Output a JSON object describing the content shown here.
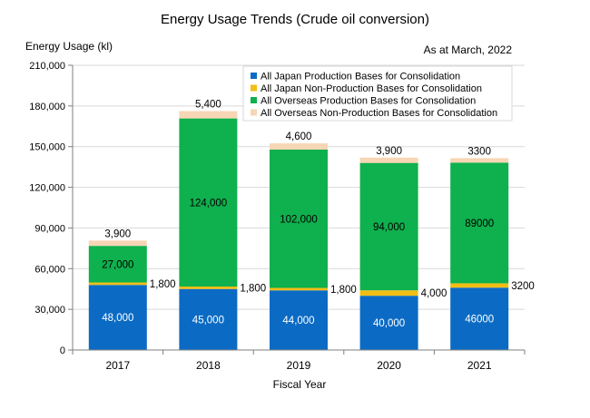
{
  "chart_data": {
    "type": "bar",
    "stacked": true,
    "title": "Energy Usage Trends (Crude oil conversion)",
    "ylabel": "Energy Usage (kl)",
    "xlabel": "Fiscal Year",
    "note": "As at March, 2022",
    "ylim": [
      0,
      210000
    ],
    "ytick_labels": [
      "0",
      "30,000",
      "60,000",
      "90,000",
      "120,000",
      "150,000",
      "180,000",
      "210,000"
    ],
    "ytick_values": [
      0,
      30000,
      60000,
      90000,
      120000,
      150000,
      180000,
      210000
    ],
    "grid": true,
    "legend_position": "top-right",
    "categories": [
      "2017",
      "2018",
      "2019",
      "2020",
      "2021"
    ],
    "series": [
      {
        "name": "All Japan Production Bases for Consolidation",
        "color": "#0B6BC4",
        "values": [
          48000,
          45000,
          44000,
          40000,
          46000
        ],
        "labels": [
          "48,000",
          "45,000",
          "44,000",
          "40,000",
          "46000"
        ]
      },
      {
        "name": "All Japan Non-Production Bases for Consolidation",
        "color": "#F2BE14",
        "values": [
          1800,
          1800,
          1800,
          4000,
          3200
        ],
        "labels": [
          "1,800",
          "1,800",
          "1,800",
          "4,000",
          "3200"
        ]
      },
      {
        "name": "All Overseas Production Bases for Consolidation",
        "color": "#0FB04E",
        "values": [
          27000,
          124000,
          102000,
          94000,
          89000
        ],
        "labels": [
          "27,000",
          "124,000",
          "102,000",
          "94,000",
          "89000"
        ]
      },
      {
        "name": "All Overseas Non-Production Bases for Consolidation",
        "color": "#F7D6B5",
        "values": [
          3900,
          5400,
          4600,
          3900,
          3300
        ],
        "labels": [
          "3,900",
          "5,400",
          "4,600",
          "3,900",
          "3300"
        ]
      }
    ]
  }
}
